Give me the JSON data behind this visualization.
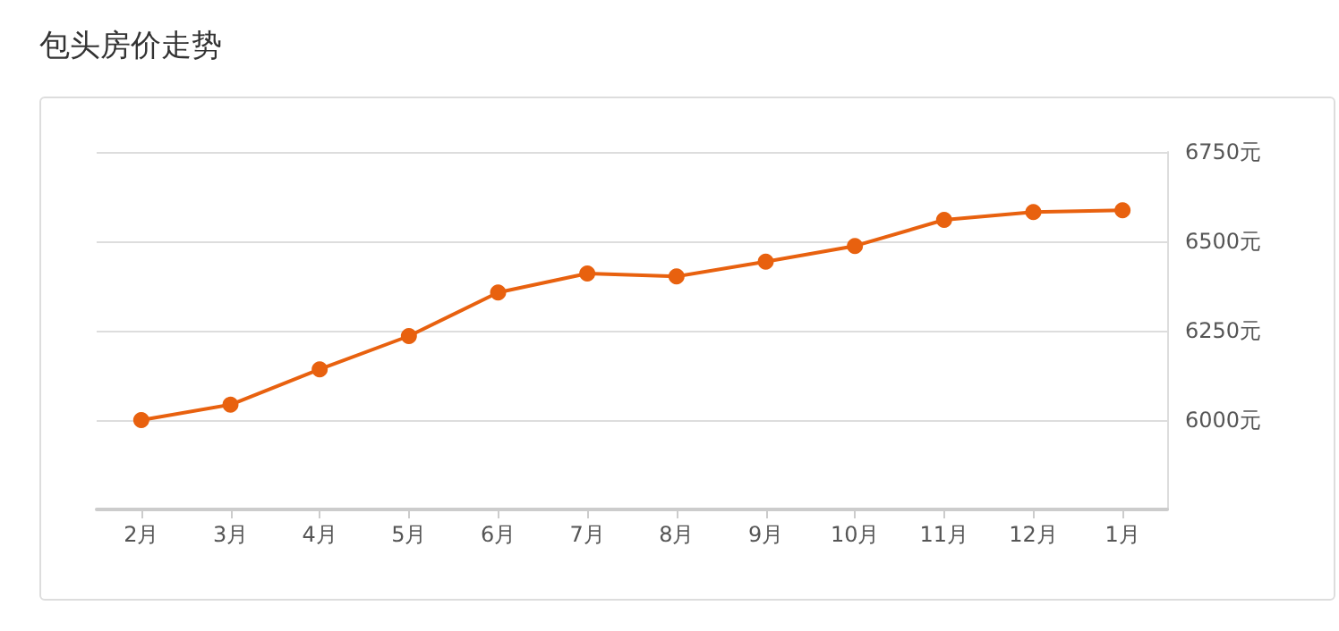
{
  "chart_data": {
    "type": "line",
    "title": "包头房价走势",
    "categories": [
      "2月",
      "3月",
      "4月",
      "5月",
      "6月",
      "7月",
      "8月",
      "9月",
      "10月",
      "11月",
      "12月",
      "1月"
    ],
    "series": [
      {
        "color": "#e8610f",
        "values": [
          6000,
          6043,
          6142,
          6235,
          6357,
          6410,
          6402,
          6443,
          6487,
          6560,
          6582,
          6587
        ]
      }
    ],
    "ylim": [
      5750,
      6750
    ],
    "yticks": [
      {
        "value": 6000,
        "label": "6000元"
      },
      {
        "value": 6250,
        "label": "6250元"
      },
      {
        "value": 6500,
        "label": "6500元"
      },
      {
        "value": 6750,
        "label": "6750元"
      }
    ],
    "grid": "y",
    "marker": "circle",
    "line_style": "solid"
  }
}
